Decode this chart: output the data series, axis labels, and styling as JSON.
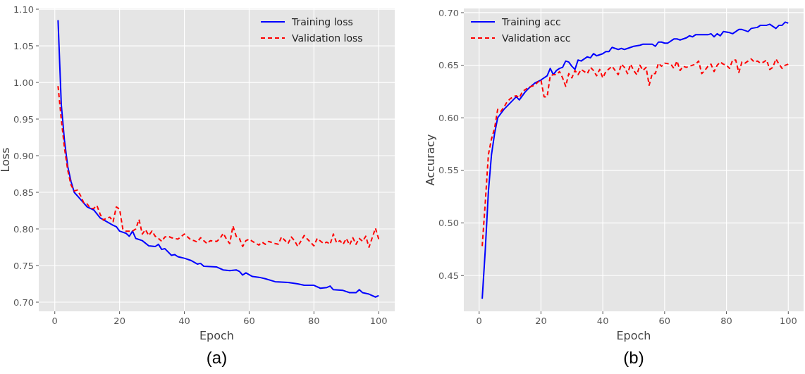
{
  "chart_data": [
    {
      "type": "line",
      "xlabel": "Epoch",
      "ylabel": "Loss",
      "annotations": [
        "(a)"
      ],
      "xlim": [
        -4.95,
        104.95
      ],
      "ylim": [
        0.6875,
        1.101
      ],
      "xticks": [
        0,
        20,
        40,
        60,
        80,
        100
      ],
      "yticks": [
        {
          "value": 0.7,
          "label": "0.70"
        },
        {
          "value": 0.75,
          "label": "0.75"
        },
        {
          "value": 0.8,
          "label": "0.80"
        },
        {
          "value": 0.85,
          "label": "0.85"
        },
        {
          "value": 0.9,
          "label": "0.90"
        },
        {
          "value": 0.95,
          "label": "0.95"
        },
        {
          "value": 1.0,
          "label": "1.00"
        },
        {
          "value": 1.05,
          "label": "1.05"
        },
        {
          "value": 1.1,
          "label": "1.10"
        }
      ],
      "grid": true,
      "legend": "top right",
      "series": [
        {
          "name": "Training loss",
          "color": "#0000ff",
          "line_style": "solid",
          "x": [
            1,
            2,
            3,
            4,
            5,
            6,
            8,
            10,
            12,
            14,
            16,
            18,
            19,
            20,
            22,
            23,
            24,
            25,
            27,
            29,
            31,
            32,
            33,
            34,
            36,
            37,
            38,
            40,
            42,
            44,
            45,
            46,
            50,
            52,
            54,
            56,
            57,
            58,
            59,
            61,
            63,
            65,
            68,
            72,
            75,
            77,
            80,
            82,
            84,
            85,
            86,
            89,
            91,
            93,
            94,
            95,
            97,
            99,
            100
          ],
          "values": [
            1.085,
            0.97,
            0.92,
            0.885,
            0.865,
            0.85,
            0.84,
            0.83,
            0.826,
            0.815,
            0.81,
            0.805,
            0.803,
            0.797,
            0.794,
            0.79,
            0.797,
            0.787,
            0.784,
            0.777,
            0.776,
            0.779,
            0.772,
            0.773,
            0.764,
            0.765,
            0.762,
            0.76,
            0.757,
            0.752,
            0.753,
            0.749,
            0.748,
            0.744,
            0.743,
            0.744,
            0.742,
            0.737,
            0.74,
            0.735,
            0.734,
            0.732,
            0.728,
            0.727,
            0.725,
            0.723,
            0.723,
            0.719,
            0.72,
            0.722,
            0.717,
            0.716,
            0.713,
            0.713,
            0.717,
            0.713,
            0.711,
            0.707,
            0.709
          ]
        },
        {
          "name": "Validation loss",
          "color": "#ff0000",
          "line_style": "dashed",
          "x": [
            1,
            2,
            3,
            4,
            5,
            6,
            7,
            8,
            9,
            10,
            11,
            12,
            13,
            14,
            15,
            16,
            17,
            18,
            19,
            20,
            21,
            22,
            23,
            24,
            25,
            26,
            27,
            28,
            29,
            30,
            31,
            32,
            33,
            34,
            35,
            36,
            38,
            40,
            42,
            43,
            44,
            45,
            46,
            47,
            48,
            50,
            51,
            52,
            53,
            54,
            55,
            56,
            57,
            58,
            59,
            60,
            61,
            63,
            64,
            65,
            66,
            68,
            69,
            70,
            72,
            73,
            74,
            75,
            77,
            78,
            80,
            81,
            83,
            84,
            85,
            86,
            87,
            88,
            89,
            90,
            91,
            92,
            93,
            94,
            95,
            96,
            97,
            98,
            99,
            100
          ],
          "values": [
            0.995,
            0.95,
            0.91,
            0.88,
            0.86,
            0.852,
            0.853,
            0.845,
            0.835,
            0.834,
            0.828,
            0.828,
            0.832,
            0.82,
            0.812,
            0.815,
            0.816,
            0.81,
            0.83,
            0.827,
            0.8,
            0.797,
            0.797,
            0.797,
            0.8,
            0.813,
            0.793,
            0.799,
            0.791,
            0.797,
            0.79,
            0.787,
            0.783,
            0.789,
            0.79,
            0.788,
            0.786,
            0.793,
            0.785,
            0.784,
            0.782,
            0.788,
            0.784,
            0.78,
            0.784,
            0.783,
            0.787,
            0.794,
            0.786,
            0.78,
            0.804,
            0.79,
            0.787,
            0.776,
            0.784,
            0.786,
            0.783,
            0.778,
            0.782,
            0.779,
            0.783,
            0.78,
            0.779,
            0.789,
            0.78,
            0.789,
            0.784,
            0.776,
            0.791,
            0.786,
            0.777,
            0.787,
            0.78,
            0.782,
            0.779,
            0.793,
            0.781,
            0.784,
            0.779,
            0.787,
            0.778,
            0.788,
            0.779,
            0.787,
            0.783,
            0.79,
            0.775,
            0.788,
            0.801,
            0.786
          ]
        }
      ]
    },
    {
      "type": "line",
      "xlabel": "Epoch",
      "ylabel": "Accuracy",
      "annotations": [
        "(b)"
      ],
      "xlim": [
        -4.95,
        104.95
      ],
      "ylim": [
        0.416,
        0.704
      ],
      "xticks": [
        0,
        20,
        40,
        60,
        80,
        100
      ],
      "yticks": [
        {
          "value": 0.45,
          "label": "0.45"
        },
        {
          "value": 0.5,
          "label": "0.50"
        },
        {
          "value": 0.55,
          "label": "0.55"
        },
        {
          "value": 0.6,
          "label": "0.60"
        },
        {
          "value": 0.65,
          "label": "0.65"
        },
        {
          "value": 0.7,
          "label": "0.70"
        }
      ],
      "grid": true,
      "legend": "top left",
      "series": [
        {
          "name": "Training acc",
          "color": "#0000ff",
          "line_style": "solid",
          "x": [
            1,
            2,
            3,
            4,
            5,
            6,
            8,
            10,
            12,
            13,
            15,
            16,
            18,
            20,
            22,
            23,
            24,
            25,
            26,
            27,
            28,
            29,
            30,
            31,
            32,
            33,
            35,
            36,
            37,
            38,
            40,
            41,
            42,
            43,
            44,
            45,
            46,
            47,
            49,
            50,
            52,
            53,
            55,
            56,
            57,
            58,
            59,
            60,
            61,
            63,
            64,
            65,
            67,
            68,
            69,
            70,
            72,
            74,
            75,
            76,
            77,
            78,
            79,
            81,
            82,
            84,
            85,
            86,
            87,
            88,
            90,
            91,
            93,
            94,
            95,
            96,
            97,
            98,
            99,
            100
          ],
          "values": [
            0.428,
            0.475,
            0.53,
            0.565,
            0.585,
            0.6,
            0.608,
            0.614,
            0.62,
            0.617,
            0.625,
            0.628,
            0.633,
            0.636,
            0.64,
            0.647,
            0.641,
            0.645,
            0.647,
            0.648,
            0.654,
            0.653,
            0.649,
            0.646,
            0.655,
            0.654,
            0.658,
            0.657,
            0.661,
            0.659,
            0.661,
            0.663,
            0.663,
            0.667,
            0.666,
            0.665,
            0.666,
            0.665,
            0.667,
            0.668,
            0.669,
            0.67,
            0.67,
            0.67,
            0.668,
            0.672,
            0.672,
            0.671,
            0.671,
            0.675,
            0.675,
            0.674,
            0.676,
            0.678,
            0.677,
            0.679,
            0.679,
            0.679,
            0.68,
            0.677,
            0.68,
            0.678,
            0.682,
            0.681,
            0.68,
            0.684,
            0.684,
            0.683,
            0.682,
            0.685,
            0.686,
            0.688,
            0.688,
            0.689,
            0.687,
            0.685,
            0.688,
            0.688,
            0.691,
            0.69
          ]
        },
        {
          "name": "Validation acc",
          "color": "#ff0000",
          "line_style": "dashed",
          "x": [
            1,
            2,
            3,
            4,
            5,
            6,
            7,
            8,
            9,
            10,
            11,
            12,
            13,
            14,
            15,
            16,
            17,
            18,
            19,
            20,
            21,
            22,
            23,
            24,
            25,
            26,
            27,
            28,
            29,
            30,
            31,
            32,
            33,
            35,
            36,
            37,
            38,
            39,
            40,
            41,
            43,
            44,
            45,
            46,
            47,
            48,
            49,
            50,
            51,
            52,
            53,
            54,
            55,
            56,
            57,
            58,
            59,
            60,
            62,
            63,
            64,
            65,
            66,
            67,
            68,
            70,
            71,
            72,
            73,
            74,
            75,
            76,
            77,
            78,
            79,
            80,
            81,
            82,
            83,
            84,
            85,
            86,
            87,
            88,
            89,
            90,
            91,
            92,
            93,
            94,
            95,
            96,
            97,
            98,
            99,
            100
          ],
          "values": [
            0.478,
            0.52,
            0.565,
            0.58,
            0.59,
            0.608,
            0.606,
            0.61,
            0.615,
            0.618,
            0.62,
            0.621,
            0.619,
            0.625,
            0.627,
            0.629,
            0.63,
            0.631,
            0.634,
            0.636,
            0.62,
            0.62,
            0.64,
            0.641,
            0.641,
            0.644,
            0.638,
            0.63,
            0.642,
            0.638,
            0.645,
            0.641,
            0.646,
            0.642,
            0.648,
            0.645,
            0.64,
            0.646,
            0.638,
            0.644,
            0.649,
            0.645,
            0.641,
            0.651,
            0.648,
            0.642,
            0.651,
            0.645,
            0.641,
            0.65,
            0.645,
            0.648,
            0.631,
            0.642,
            0.642,
            0.652,
            0.649,
            0.652,
            0.651,
            0.647,
            0.654,
            0.645,
            0.649,
            0.648,
            0.649,
            0.651,
            0.654,
            0.642,
            0.645,
            0.649,
            0.651,
            0.644,
            0.65,
            0.653,
            0.651,
            0.65,
            0.647,
            0.655,
            0.655,
            0.643,
            0.653,
            0.652,
            0.654,
            0.656,
            0.653,
            0.654,
            0.652,
            0.653,
            0.655,
            0.646,
            0.648,
            0.656,
            0.651,
            0.647,
            0.65,
            0.651
          ]
        }
      ]
    }
  ]
}
